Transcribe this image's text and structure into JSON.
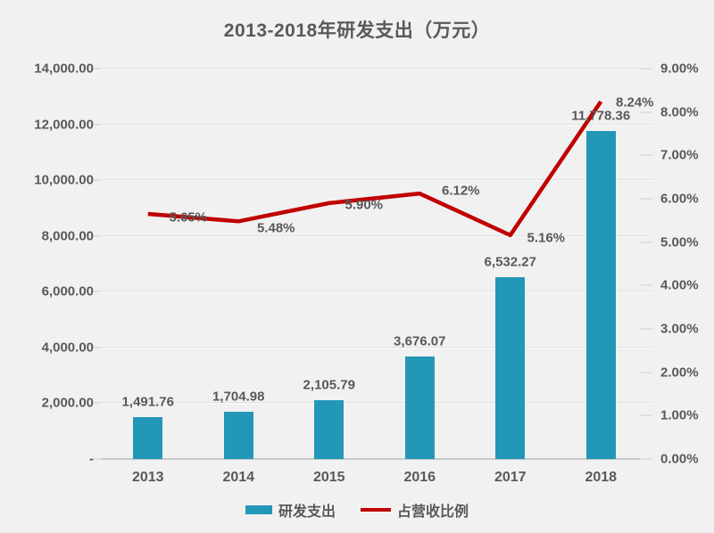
{
  "title": "2013-2018年研发支出（万元）",
  "colors": {
    "background": "#F1F1F2",
    "bar": "#2397B8",
    "line": "#C00000",
    "text": "#595959",
    "grid": "#E0E0E0",
    "axis_line": "#C9C9C9"
  },
  "chart_data": {
    "type": "bar",
    "combo": "bar+line dual-axis",
    "title": "2013-2018年研发支出（万元）",
    "categories": [
      "2013",
      "2014",
      "2015",
      "2016",
      "2017",
      "2018"
    ],
    "series": [
      {
        "name": "研发支出",
        "type": "bar",
        "axis": "left",
        "values": [
          1491.76,
          1704.98,
          2105.79,
          3676.07,
          6532.27,
          11778.36
        ],
        "labels": [
          "1,491.76",
          "1,704.98",
          "2,105.79",
          "3,676.07",
          "6,532.27",
          "11,778.36"
        ]
      },
      {
        "name": "占营收比例",
        "type": "line",
        "axis": "right",
        "values": [
          5.65,
          5.48,
          5.9,
          6.12,
          5.16,
          8.24
        ],
        "labels": [
          "5.65%",
          "5.48%",
          "5.90%",
          "6.12%",
          "5.16%",
          "8.24%"
        ]
      }
    ],
    "left_axis": {
      "min": 0,
      "max": 14000,
      "step": 2000,
      "tick_labels": [
        "14,000.00",
        "12,000.00",
        "10,000.00",
        "8,000.00",
        "6,000.00",
        "4,000.00",
        "2,000.00",
        "-"
      ]
    },
    "right_axis": {
      "min": 0,
      "max": 9,
      "step": 1,
      "tick_labels": [
        "9.00%",
        "8.00%",
        "7.00%",
        "6.00%",
        "5.00%",
        "4.00%",
        "3.00%",
        "2.00%",
        "1.00%",
        "0.00%"
      ]
    },
    "grid": true,
    "legend_position": "bottom"
  },
  "legend": {
    "bar_label": "研发支出",
    "line_label": "占营收比例"
  }
}
